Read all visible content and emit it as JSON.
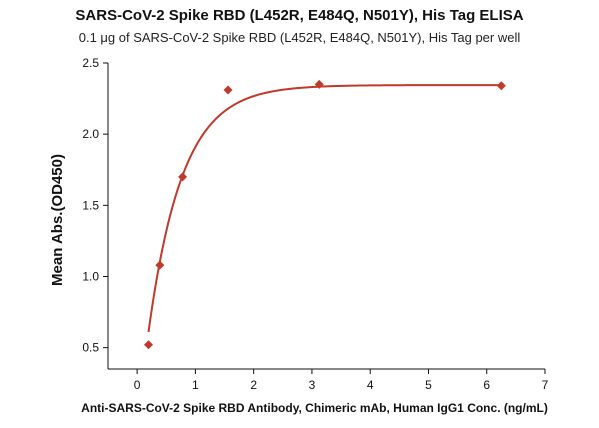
{
  "chart_data": {
    "type": "scatter",
    "title": "SARS-CoV-2 Spike RBD (L452R, E484Q, N501Y), His Tag ELISA",
    "subtitle": "0.1 μg of SARS-CoV-2 Spike RBD (L452R, E484Q, N501Y), His Tag per well",
    "xlabel": "Anti-SARS-CoV-2 Spike RBD Antibody, Chimeric mAb, Human IgG1 Conc. (ng/mL)",
    "ylabel": "Mean Abs.(OD450)",
    "xlim": [
      -0.5,
      7
    ],
    "ylim": [
      0.35,
      2.5
    ],
    "xticks": [
      "0",
      "1",
      "2",
      "3",
      "4",
      "5",
      "6",
      "7"
    ],
    "yticks": [
      "0.5",
      "1.0",
      "1.5",
      "2.0",
      "2.5"
    ],
    "grid": false,
    "series": [
      {
        "points": [
          {
            "x": 0.195,
            "y": 0.52
          },
          {
            "x": 0.39,
            "y": 1.08
          },
          {
            "x": 0.78,
            "y": 1.7
          },
          {
            "x": 1.56,
            "y": 2.31
          },
          {
            "x": 3.125,
            "y": 2.35
          },
          {
            "x": 6.25,
            "y": 2.34
          }
        ],
        "fit_curve": true,
        "color": "#c0392b"
      }
    ]
  }
}
